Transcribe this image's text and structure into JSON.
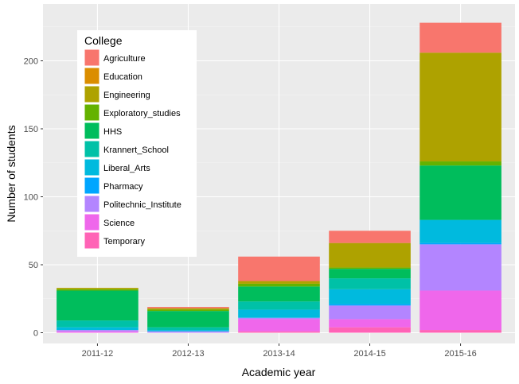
{
  "chart_data": {
    "type": "bar",
    "stacked": true,
    "xlabel": "Academic year",
    "ylabel": "Number of students",
    "categories": [
      "2011-12",
      "2012-13",
      "2013-14",
      "2014-15",
      "2015-16"
    ],
    "ylim": [
      0,
      230
    ],
    "yticks": [
      0,
      50,
      100,
      150,
      200
    ],
    "legend": {
      "title": "College",
      "position": "top-left, inside plot"
    },
    "grid": true,
    "series": [
      {
        "name": "Agriculture",
        "color": "#F8766D",
        "values": [
          0,
          1,
          18,
          9,
          22
        ]
      },
      {
        "name": "Education",
        "color": "#DB8E00",
        "values": [
          0,
          0,
          0,
          0,
          0
        ]
      },
      {
        "name": "Engineering",
        "color": "#AEA200",
        "values": [
          1,
          1,
          2,
          18,
          80
        ]
      },
      {
        "name": "Exploratory_studies",
        "color": "#64B200",
        "values": [
          1,
          1,
          2,
          1,
          3
        ]
      },
      {
        "name": "HHS",
        "color": "#00BD5C",
        "values": [
          22,
          12,
          11,
          7,
          40
        ]
      },
      {
        "name": "Krannert_School",
        "color": "#00C1A7",
        "values": [
          5,
          2,
          6,
          8,
          0
        ]
      },
      {
        "name": "Liberal_Arts",
        "color": "#00BADE",
        "values": [
          2,
          1,
          6,
          11,
          17
        ]
      },
      {
        "name": "Pharmacy",
        "color": "#00A6FF",
        "values": [
          0,
          0,
          0,
          1,
          1
        ]
      },
      {
        "name": "Politechnic_Institute",
        "color": "#B385FF",
        "values": [
          1,
          1,
          1,
          10,
          34
        ]
      },
      {
        "name": "Science",
        "color": "#EF67EB",
        "values": [
          1,
          0,
          9,
          6,
          29
        ]
      },
      {
        "name": "Temporary",
        "color": "#FF63B6",
        "values": [
          0,
          0,
          1,
          4,
          2
        ]
      }
    ]
  }
}
